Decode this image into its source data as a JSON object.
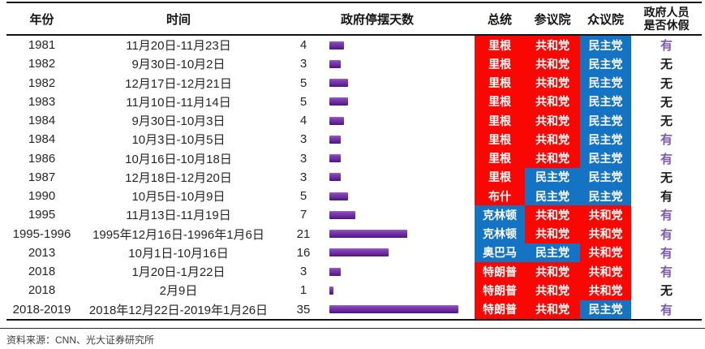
{
  "table": {
    "headers": {
      "year": "年份",
      "time": "时间",
      "days": "政府停摆天数",
      "president": "总统",
      "senate": "参议院",
      "house": "众议院",
      "furlough": "政府人员\n是否休假"
    },
    "rows": [
      {
        "year": "1981",
        "time": "11月20日-11月23日",
        "days": 4,
        "president": "里根",
        "president_color": "R",
        "senate": "共和党",
        "senate_color": "R",
        "house": "民主党",
        "house_color": "D",
        "furlough": "有",
        "furlough_color": "purple"
      },
      {
        "year": "1982",
        "time": "9月30日-10月2日",
        "days": 3,
        "president": "里根",
        "president_color": "R",
        "senate": "共和党",
        "senate_color": "R",
        "house": "民主党",
        "house_color": "D",
        "furlough": "无",
        "furlough_color": "black"
      },
      {
        "year": "1982",
        "time": "12月17日-12月21日",
        "days": 5,
        "president": "里根",
        "president_color": "R",
        "senate": "共和党",
        "senate_color": "R",
        "house": "民主党",
        "house_color": "D",
        "furlough": "无",
        "furlough_color": "black"
      },
      {
        "year": "1983",
        "time": "11月10日-11月14日",
        "days": 5,
        "president": "里根",
        "president_color": "R",
        "senate": "共和党",
        "senate_color": "R",
        "house": "民主党",
        "house_color": "D",
        "furlough": "无",
        "furlough_color": "black"
      },
      {
        "year": "1984",
        "time": "9月30日-10月3日",
        "days": 4,
        "president": "里根",
        "president_color": "R",
        "senate": "共和党",
        "senate_color": "R",
        "house": "民主党",
        "house_color": "D",
        "furlough": "无",
        "furlough_color": "black"
      },
      {
        "year": "1984",
        "time": "10月3日-10月5日",
        "days": 3,
        "president": "里根",
        "president_color": "R",
        "senate": "共和党",
        "senate_color": "R",
        "house": "民主党",
        "house_color": "D",
        "furlough": "有",
        "furlough_color": "purple"
      },
      {
        "year": "1986",
        "time": "10月16日-10月18日",
        "days": 3,
        "president": "里根",
        "president_color": "R",
        "senate": "共和党",
        "senate_color": "R",
        "house": "民主党",
        "house_color": "D",
        "furlough": "有",
        "furlough_color": "purple"
      },
      {
        "year": "1987",
        "time": "12月18日-12月20日",
        "days": 3,
        "president": "里根",
        "president_color": "R",
        "senate": "民主党",
        "senate_color": "D",
        "house": "民主党",
        "house_color": "D",
        "furlough": "无",
        "furlough_color": "black"
      },
      {
        "year": "1990",
        "time": "10月5日-10月9日",
        "days": 5,
        "president": "布什",
        "president_color": "R",
        "senate": "民主党",
        "senate_color": "D",
        "house": "民主党",
        "house_color": "D",
        "furlough": "有",
        "furlough_color": "black"
      },
      {
        "year": "1995",
        "time": "11月13日-11月19日",
        "days": 7,
        "president": "克林顿",
        "president_color": "D",
        "senate": "共和党",
        "senate_color": "R",
        "house": "共和党",
        "house_color": "R",
        "furlough": "有",
        "furlough_color": "purple"
      },
      {
        "year": "1995-1996",
        "time": "1995年12月16日-1996年1月6日",
        "days": 21,
        "president": "克林顿",
        "president_color": "D",
        "senate": "共和党",
        "senate_color": "R",
        "house": "共和党",
        "house_color": "R",
        "furlough": "有",
        "furlough_color": "purple"
      },
      {
        "year": "2013",
        "time": "10月1日-10月16日",
        "days": 16,
        "president": "奥巴马",
        "president_color": "D",
        "senate": "民主党",
        "senate_color": "D",
        "house": "共和党",
        "house_color": "R",
        "furlough": "有",
        "furlough_color": "purple"
      },
      {
        "year": "2018",
        "time": "1月20日-1月22日",
        "days": 3,
        "president": "特朗普",
        "president_color": "R",
        "senate": "共和党",
        "senate_color": "R",
        "house": "共和党",
        "house_color": "R",
        "furlough": "有",
        "furlough_color": "purple"
      },
      {
        "year": "2018",
        "time": "2月9日",
        "days": 1,
        "president": "特朗普",
        "president_color": "R",
        "senate": "共和党",
        "senate_color": "R",
        "house": "共和党",
        "house_color": "R",
        "furlough": "无",
        "furlough_color": "black"
      },
      {
        "year": "2018-2019",
        "time": "2018年12月22日-2019年1月26日",
        "days": 35,
        "president": "特朗普",
        "president_color": "R",
        "senate": "共和党",
        "senate_color": "R",
        "house": "民主党",
        "house_color": "D",
        "furlough": "有",
        "furlough_color": "purple"
      }
    ]
  },
  "footer": {
    "source": "资料来源：CNN、光大证券研究所"
  },
  "colors": {
    "republican": "#fb0703",
    "democrat": "#1573c4",
    "bar": "#7030a0",
    "furlough_yes": "#7d57b0",
    "furlough_no": "#1a1a1a"
  },
  "chart_data": {
    "type": "bar",
    "orientation": "horizontal",
    "title": "政府停摆天数",
    "categories": [
      "1981",
      "1982",
      "1982",
      "1983",
      "1984",
      "1984",
      "1986",
      "1987",
      "1990",
      "1995",
      "1995-1996",
      "2013",
      "2018",
      "2018",
      "2018-2019"
    ],
    "values": [
      4,
      3,
      5,
      5,
      4,
      3,
      3,
      3,
      5,
      7,
      21,
      16,
      3,
      1,
      35
    ],
    "bar_color": "#7030a0",
    "xlim": [
      0,
      36
    ],
    "grid": false,
    "legend": false
  }
}
